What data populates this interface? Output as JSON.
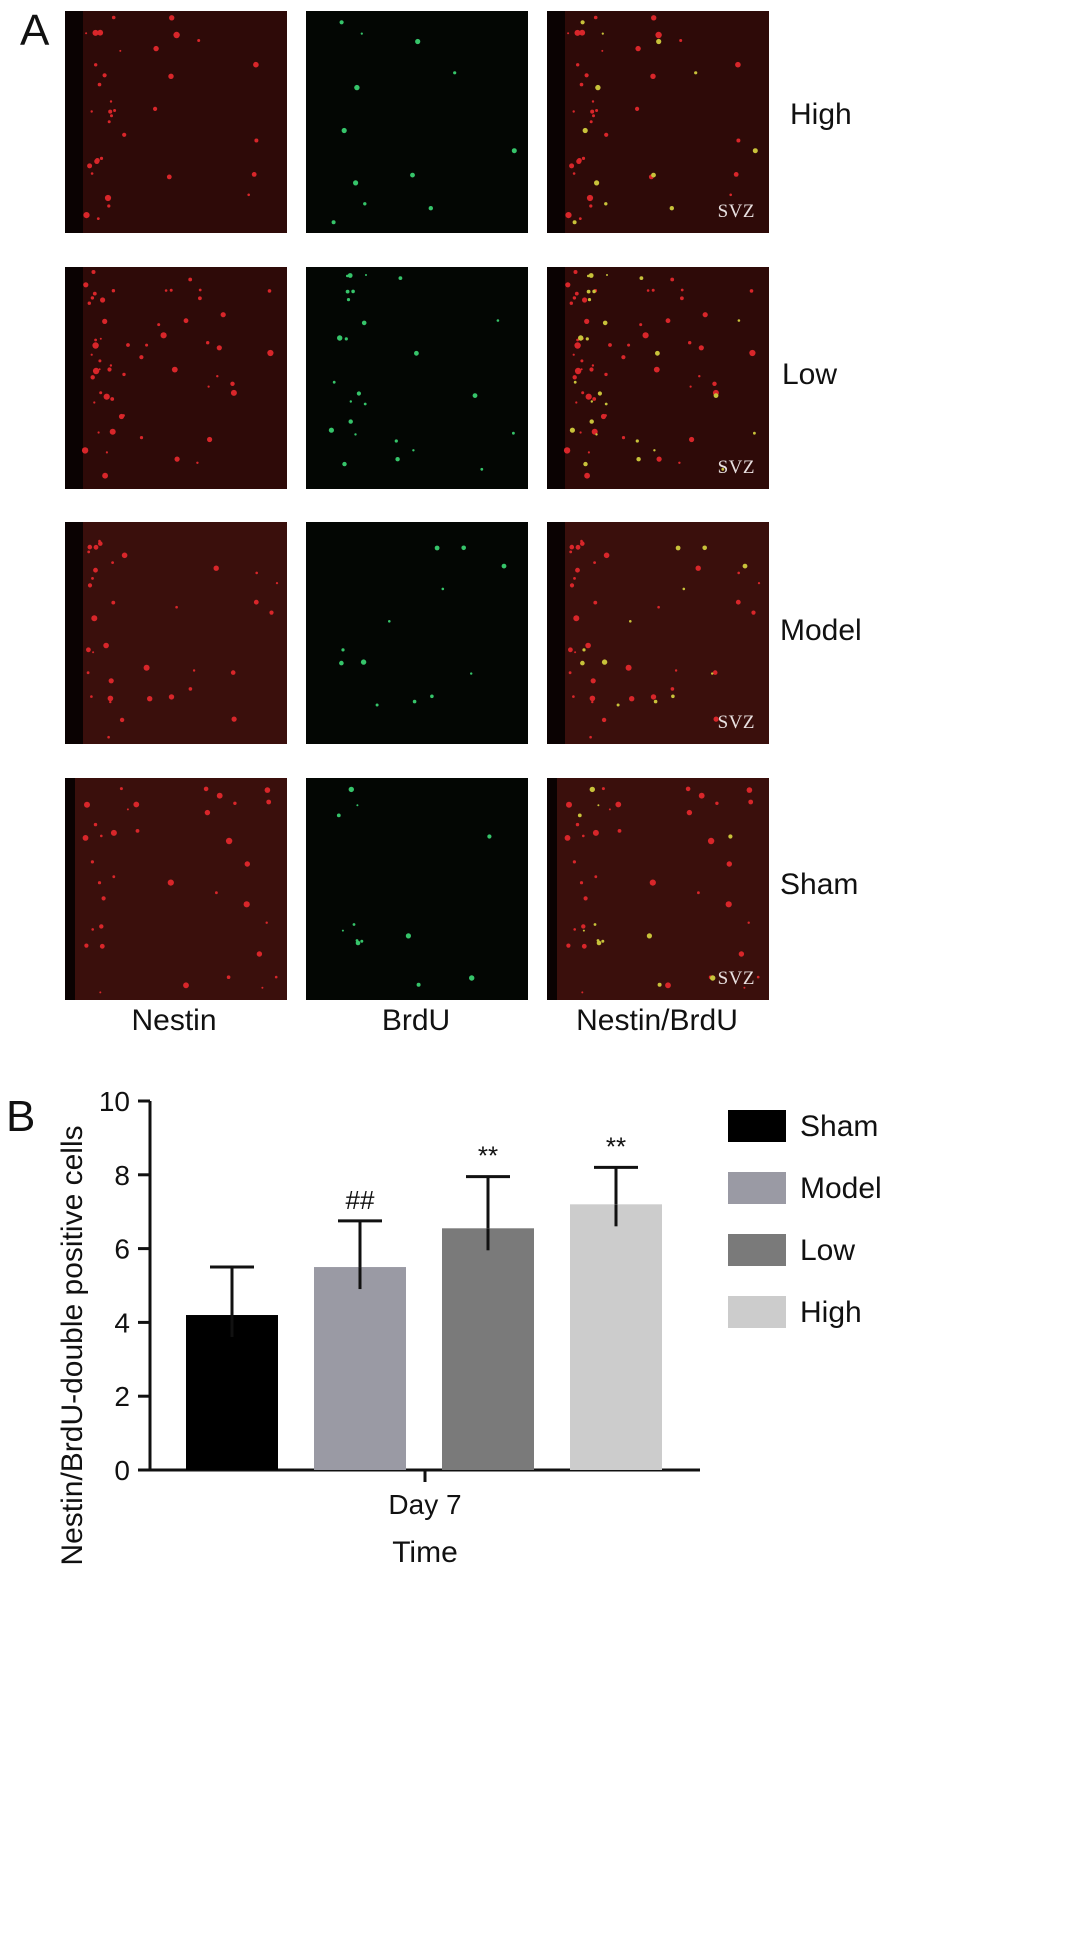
{
  "figure": {
    "panel_a_letter": "A",
    "panel_b_letter": "B",
    "row_labels": [
      "High",
      "Low",
      "Model",
      "Sham"
    ],
    "column_labels": [
      "Nestin",
      "BrdU",
      "Nestin/BrdU"
    ],
    "region_label": "SVZ"
  },
  "chart_data": {
    "type": "bar",
    "categories": [
      "Day 7"
    ],
    "series": [
      {
        "name": "Sham",
        "values": [
          4.2
        ],
        "error": [
          1.3
        ],
        "annotation": "",
        "color": "#000000"
      },
      {
        "name": "Model",
        "values": [
          5.5
        ],
        "error": [
          1.25
        ],
        "annotation": "##",
        "color": "#9a9aa4"
      },
      {
        "name": "Low",
        "values": [
          6.55
        ],
        "error": [
          1.4
        ],
        "annotation": "**",
        "color": "#7a7a7a"
      },
      {
        "name": "High",
        "values": [
          7.2
        ],
        "error": [
          1.0
        ],
        "annotation": "**",
        "color": "#cccccc"
      }
    ],
    "xlabel": "Time",
    "ylabel": "Nestin/BrdU-double positive cells",
    "ylim": [
      0,
      10
    ],
    "yticks": [
      "0",
      "2",
      "4",
      "6",
      "8",
      "10"
    ],
    "legend": "right",
    "grid": false
  }
}
